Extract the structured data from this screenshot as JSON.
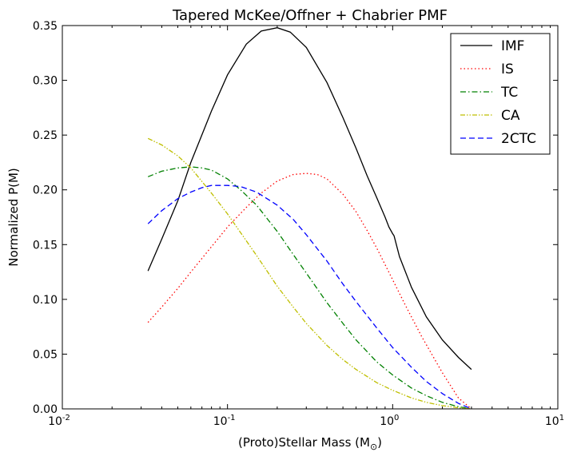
{
  "chart_data": {
    "type": "line",
    "title": "Tapered McKee/Offner + Chabrier PMF",
    "xlabel": "(Proto)Stellar Mass (M",
    "xlabel_symbol": "⊙",
    "xlabel_suffix": ")",
    "ylabel": "Normalized P(M)",
    "xscale": "log",
    "xlim": [
      0.01,
      10
    ],
    "ylim": [
      0.0,
      0.35
    ],
    "xticks": [
      {
        "value": 0.01,
        "base": "10",
        "exp": "-2"
      },
      {
        "value": 0.1,
        "base": "10",
        "exp": "-1"
      },
      {
        "value": 1,
        "base": "10",
        "exp": "0"
      },
      {
        "value": 10,
        "base": "10",
        "exp": "1"
      }
    ],
    "yticks": [
      {
        "value": 0.0,
        "label": "0.00"
      },
      {
        "value": 0.05,
        "label": "0.05"
      },
      {
        "value": 0.1,
        "label": "0.10"
      },
      {
        "value": 0.15,
        "label": "0.15"
      },
      {
        "value": 0.2,
        "label": "0.20"
      },
      {
        "value": 0.25,
        "label": "0.25"
      },
      {
        "value": 0.3,
        "label": "0.30"
      },
      {
        "value": 0.35,
        "label": "0.35"
      }
    ],
    "grid": false,
    "legend_position": "top-right",
    "series": [
      {
        "name": "IMF",
        "color": "#000000",
        "dash": "solid",
        "x": [
          0.033,
          0.04,
          0.05,
          0.06,
          0.08,
          0.1,
          0.13,
          0.16,
          0.2,
          0.24,
          0.3,
          0.4,
          0.5,
          0.6,
          0.7,
          0.8,
          0.9,
          0.95,
          1.0,
          1.02,
          1.1,
          1.3,
          1.6,
          2.0,
          2.5,
          3.0
        ],
        "y": [
          0.126,
          0.155,
          0.19,
          0.225,
          0.272,
          0.305,
          0.333,
          0.345,
          0.348,
          0.344,
          0.33,
          0.298,
          0.266,
          0.238,
          0.213,
          0.193,
          0.175,
          0.166,
          0.16,
          0.158,
          0.139,
          0.111,
          0.084,
          0.063,
          0.047,
          0.036
        ]
      },
      {
        "name": "IS",
        "color": "#ff0000",
        "dash": "dotted",
        "x": [
          0.033,
          0.04,
          0.05,
          0.06,
          0.08,
          0.1,
          0.13,
          0.16,
          0.2,
          0.25,
          0.3,
          0.35,
          0.4,
          0.5,
          0.6,
          0.7,
          0.8,
          1.0,
          1.2,
          1.5,
          2.0,
          2.5,
          3.0
        ],
        "y": [
          0.079,
          0.093,
          0.11,
          0.125,
          0.148,
          0.166,
          0.184,
          0.197,
          0.208,
          0.214,
          0.215,
          0.214,
          0.21,
          0.196,
          0.18,
          0.163,
          0.147,
          0.118,
          0.094,
          0.066,
          0.033,
          0.01,
          0.0
        ]
      },
      {
        "name": "TC",
        "color": "#008000",
        "dash": "dashdot",
        "x": [
          0.033,
          0.04,
          0.05,
          0.06,
          0.07,
          0.08,
          0.1,
          0.12,
          0.15,
          0.2,
          0.25,
          0.3,
          0.4,
          0.5,
          0.6,
          0.8,
          1.0,
          1.3,
          1.6,
          2.0,
          2.5,
          3.0
        ],
        "y": [
          0.212,
          0.217,
          0.22,
          0.221,
          0.22,
          0.218,
          0.21,
          0.2,
          0.186,
          0.162,
          0.141,
          0.124,
          0.097,
          0.078,
          0.063,
          0.043,
          0.031,
          0.019,
          0.012,
          0.006,
          0.002,
          0.0
        ]
      },
      {
        "name": "CA",
        "color": "#bfbf00",
        "dash": "dashdotdot",
        "x": [
          0.033,
          0.04,
          0.05,
          0.06,
          0.08,
          0.1,
          0.12,
          0.15,
          0.2,
          0.25,
          0.3,
          0.4,
          0.5,
          0.6,
          0.8,
          1.0,
          1.3,
          1.6,
          2.0,
          2.5,
          3.0
        ],
        "y": [
          0.247,
          0.241,
          0.231,
          0.22,
          0.197,
          0.178,
          0.161,
          0.14,
          0.112,
          0.093,
          0.078,
          0.058,
          0.045,
          0.036,
          0.024,
          0.017,
          0.01,
          0.006,
          0.003,
          0.001,
          0.0
        ]
      },
      {
        "name": "2CTC",
        "color": "#0000ff",
        "dash": "dashed",
        "x": [
          0.033,
          0.04,
          0.05,
          0.06,
          0.07,
          0.08,
          0.1,
          0.12,
          0.15,
          0.2,
          0.25,
          0.3,
          0.4,
          0.5,
          0.6,
          0.8,
          1.0,
          1.3,
          1.6,
          2.0,
          2.5,
          3.0
        ],
        "y": [
          0.169,
          0.181,
          0.192,
          0.198,
          0.202,
          0.204,
          0.204,
          0.203,
          0.198,
          0.186,
          0.173,
          0.159,
          0.135,
          0.114,
          0.098,
          0.074,
          0.056,
          0.038,
          0.025,
          0.014,
          0.005,
          0.0
        ]
      }
    ]
  }
}
